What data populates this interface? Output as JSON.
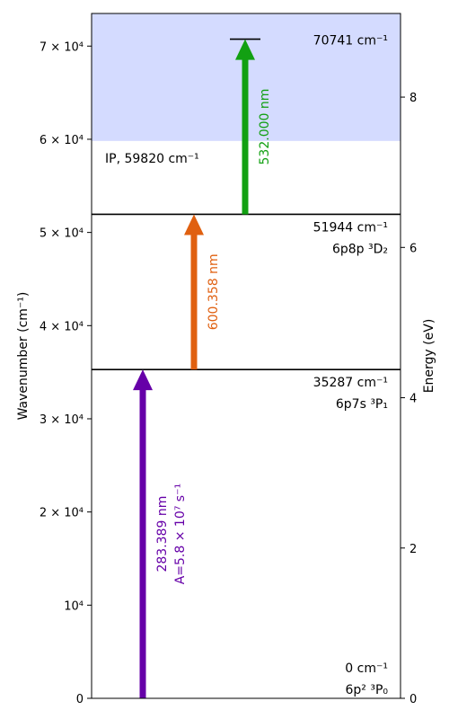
{
  "chart_data": {
    "type": "energy_level_diagram",
    "ylabel_left": "Wavenumber (cm⁻¹)",
    "ylabel_right": "Energy (eV)",
    "ylim_wavenumber": [
      0,
      73500
    ],
    "left_ticks": [
      {
        "value": 0,
        "label": "0"
      },
      {
        "value": 10000,
        "label": "10⁴"
      },
      {
        "value": 20000,
        "label": "2 × 10⁴"
      },
      {
        "value": 30000,
        "label": "3 × 10⁴"
      },
      {
        "value": 40000,
        "label": "4 × 10⁴"
      },
      {
        "value": 50000,
        "label": "5 × 10⁴"
      },
      {
        "value": 60000,
        "label": "6 × 10⁴"
      },
      {
        "value": 70000,
        "label": "7 × 10⁴"
      }
    ],
    "right_ticks": [
      {
        "value": 0,
        "label": "0"
      },
      {
        "value": 2,
        "label": "2"
      },
      {
        "value": 4,
        "label": "4"
      },
      {
        "value": 6,
        "label": "6"
      },
      {
        "value": 8,
        "label": "8"
      }
    ],
    "ionization": {
      "value": 59820,
      "label": "IP, 59820 cm⁻¹",
      "color": "#d4dbff"
    },
    "levels": [
      {
        "value": 0,
        "energy_label": "0 cm⁻¹",
        "term_label": "6p² ³P₀"
      },
      {
        "value": 35287,
        "energy_label": "35287 cm⁻¹",
        "term_label": "6p7s ³P₁"
      },
      {
        "value": 51944,
        "energy_label": "51944 cm⁻¹",
        "term_label": "6p8p ³D₂"
      },
      {
        "value": 70741,
        "energy_label": "70741 cm⁻¹",
        "term_label": ""
      }
    ],
    "transitions": [
      {
        "from": 0,
        "to": 35287,
        "wavelength_label": "283.389 nm",
        "extra_label": "A=5.8 × 10⁷ s⁻¹",
        "color": "#6600a8"
      },
      {
        "from": 35287,
        "to": 51944,
        "wavelength_label": "600.358 nm",
        "extra_label": "",
        "color": "#e06010"
      },
      {
        "from": 51944,
        "to": 70741,
        "wavelength_label": "532.000 nm",
        "extra_label": "",
        "color": "#12a012"
      }
    ]
  }
}
